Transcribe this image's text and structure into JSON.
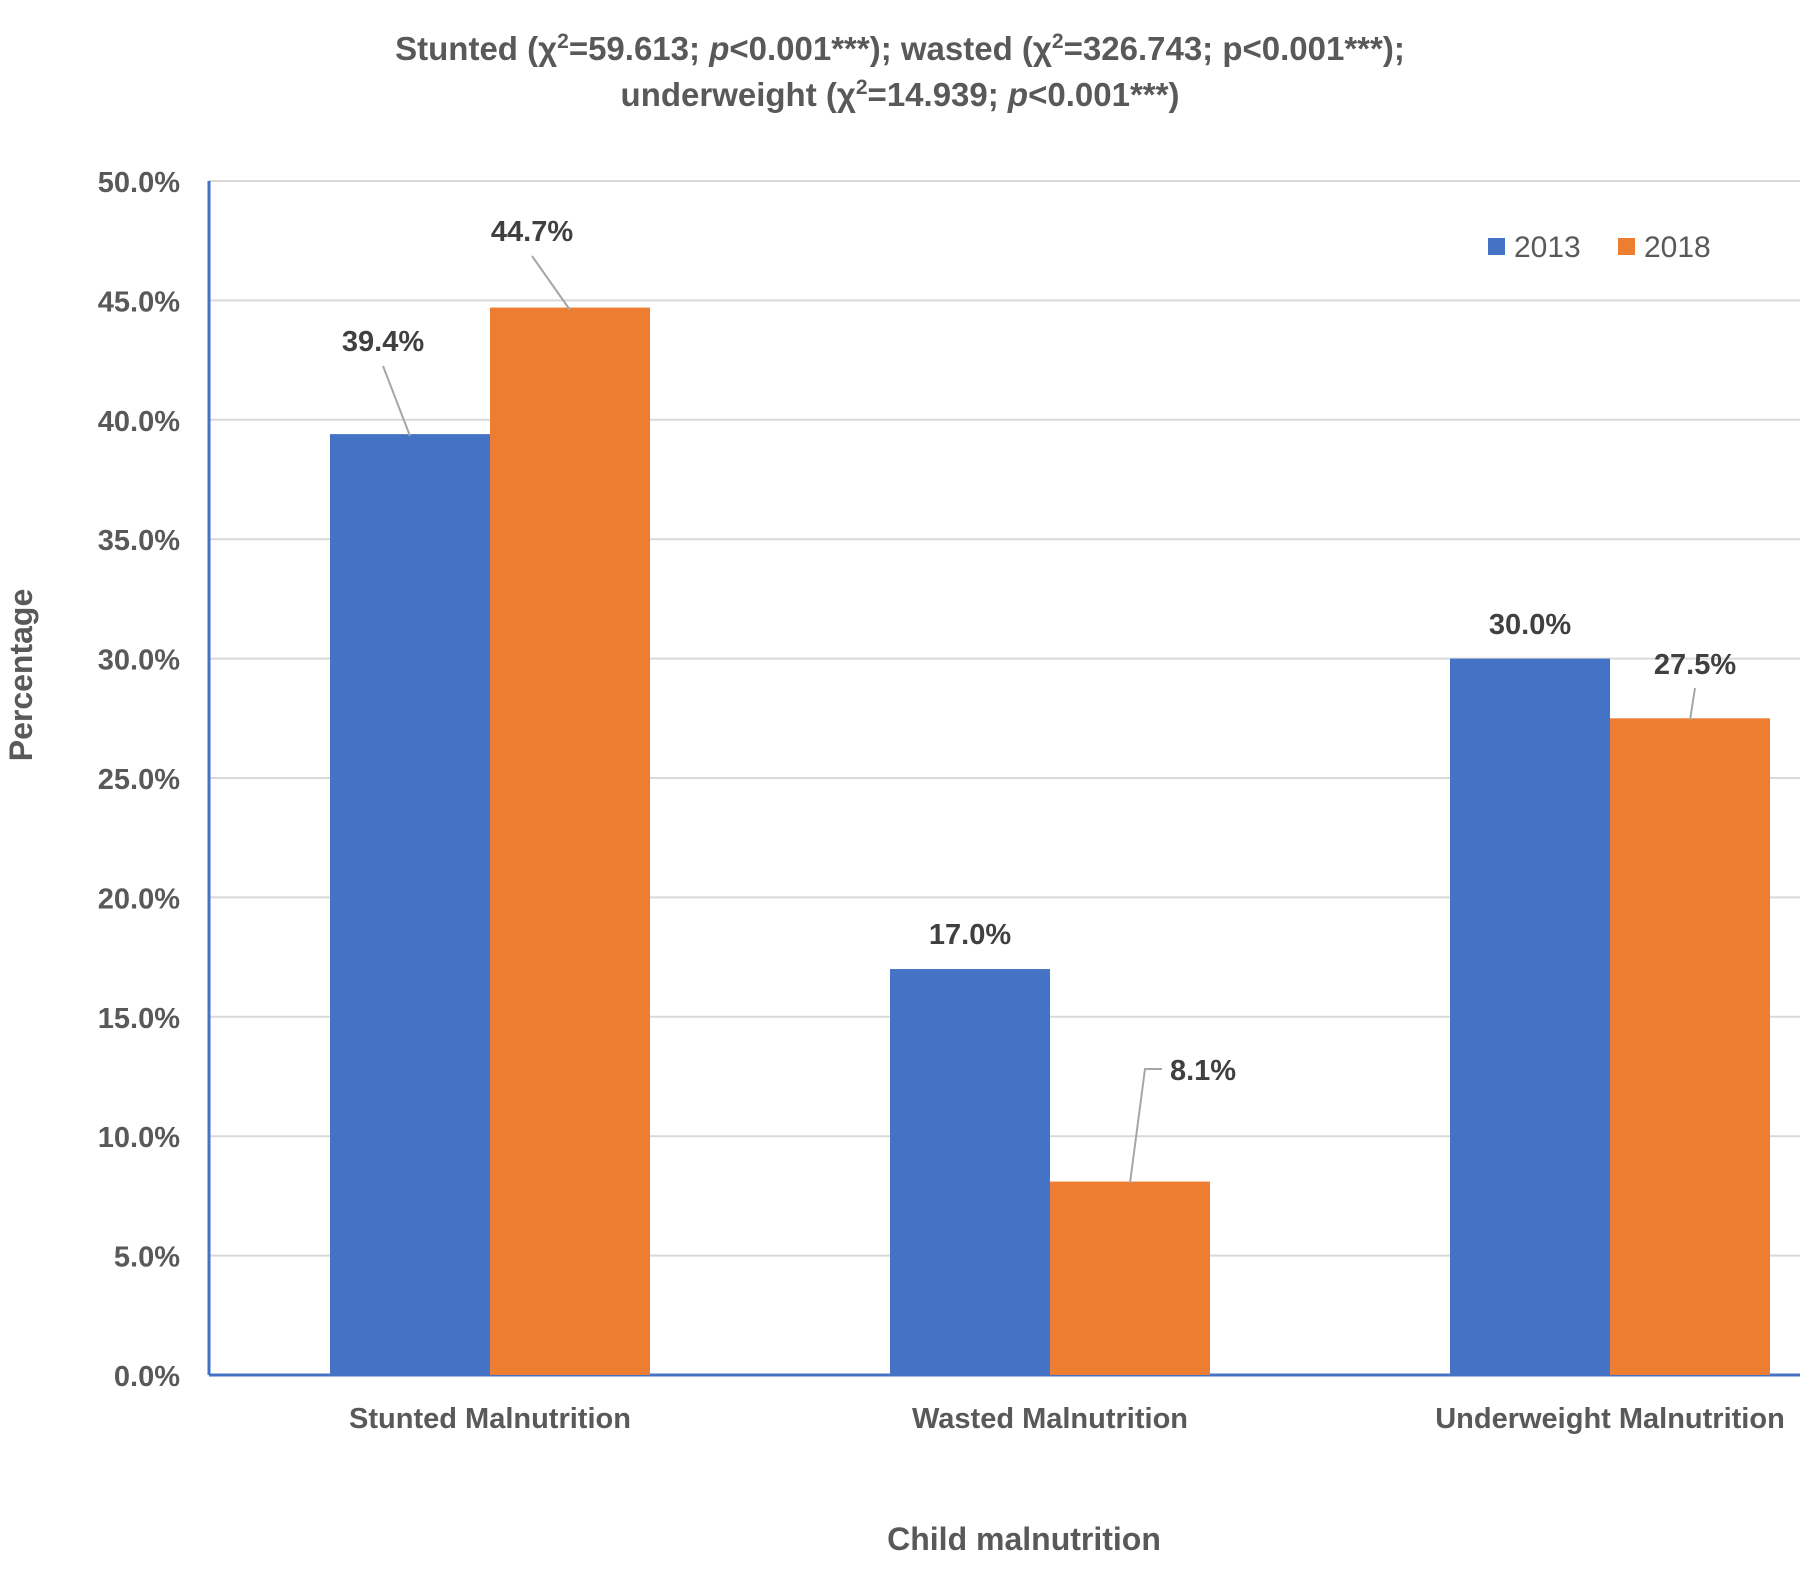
{
  "title": {
    "line1": [
      {
        "t": "Stunted (χ"
      },
      {
        "t": "2",
        "sup": true
      },
      {
        "t": "=59.613; "
      },
      {
        "t": "p",
        "i": true
      },
      {
        "t": "<0.001***); wasted (χ"
      },
      {
        "t": "2",
        "sup": true
      },
      {
        "t": "=326.743; p<0.001***);"
      }
    ],
    "line2": [
      {
        "t": "underweight (χ"
      },
      {
        "t": "2",
        "sup": true
      },
      {
        "t": "=14.939; "
      },
      {
        "t": "p",
        "i": true
      },
      {
        "t": "<0.001***)"
      }
    ]
  },
  "chart_data": {
    "type": "bar",
    "categories": [
      "Stunted Malnutrition",
      "Wasted Malnutrition",
      "Underweight Malnutrition"
    ],
    "series": [
      {
        "name": "2013",
        "color": "#4472C4",
        "values": [
          39.4,
          17.0,
          30.0
        ],
        "labels": [
          "39.4%",
          "17.0%",
          "30.0%"
        ]
      },
      {
        "name": "2018",
        "color": "#ED7D31",
        "values": [
          44.7,
          8.1,
          27.5
        ],
        "labels": [
          "44.7%",
          "8.1%",
          "27.5%"
        ]
      }
    ],
    "ylim": [
      0,
      50
    ],
    "yticks": [
      0,
      5,
      10,
      15,
      20,
      25,
      30,
      35,
      40,
      45,
      50
    ],
    "ytick_labels": [
      "0.0%",
      "5.0%",
      "10.0%",
      "15.0%",
      "20.0%",
      "25.0%",
      "30.0%",
      "35.0%",
      "40.0%",
      "45.0%",
      "50.0%"
    ],
    "xlabel": "Child malnutrition",
    "ylabel": "Percentage",
    "grid": true,
    "legend_position": "top-right"
  }
}
